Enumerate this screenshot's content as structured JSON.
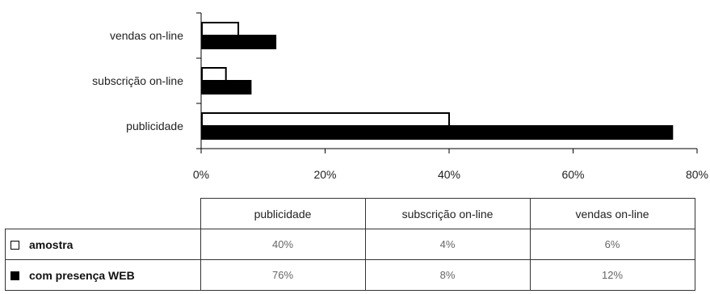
{
  "chart_data": {
    "type": "bar",
    "orientation": "horizontal",
    "categories": [
      "publicidade",
      "subscrição on-line",
      "vendas on-line"
    ],
    "series": [
      {
        "name": "amostra",
        "values": [
          40,
          4,
          6
        ],
        "color": "#ffffff",
        "stroke": "#000000"
      },
      {
        "name": "com presença WEB",
        "values": [
          76,
          8,
          12
        ],
        "color": "#000000",
        "stroke": "#000000"
      }
    ],
    "xlim": [
      0,
      80
    ],
    "xticks": [
      0,
      20,
      40,
      60,
      80
    ],
    "tick_format": "%",
    "grid": false,
    "legend_placement": "data table below"
  },
  "table": {
    "headers": [
      "publicidade",
      "subscrição on-line",
      "vendas on-line"
    ],
    "rows": [
      {
        "label": "amostra",
        "values": [
          "40%",
          "4%",
          "6%"
        ]
      },
      {
        "label": "com presença WEB",
        "values": [
          "76%",
          "8%",
          "12%"
        ]
      }
    ]
  }
}
